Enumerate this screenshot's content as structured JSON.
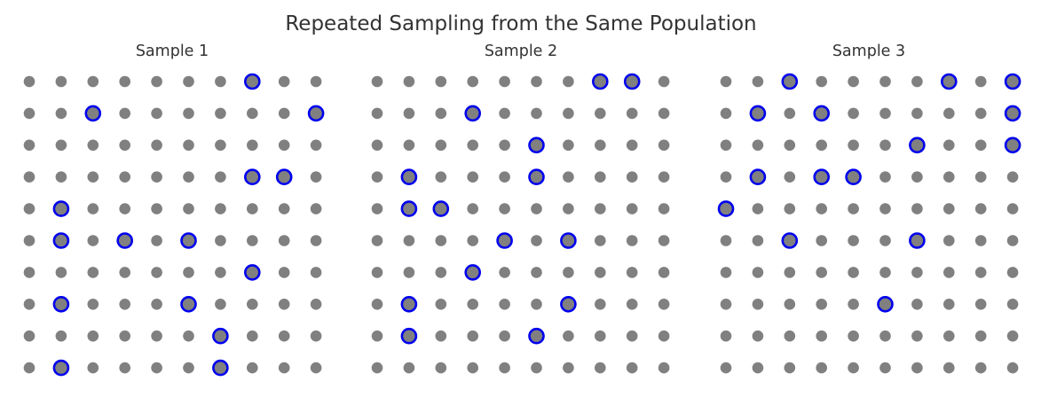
{
  "chart_data": {
    "type": "scatter",
    "title": "Repeated Sampling from the Same Population",
    "grid_rows": 10,
    "grid_cols": 10,
    "colors": {
      "population_dot": "#808080",
      "sample_ring": "#0000ee",
      "text": "#333333"
    },
    "panels": [
      {
        "title": "Sample 1",
        "selected": [
          [
            0,
            7
          ],
          [
            1,
            2
          ],
          [
            1,
            9
          ],
          [
            3,
            7
          ],
          [
            3,
            8
          ],
          [
            4,
            1
          ],
          [
            5,
            1
          ],
          [
            5,
            3
          ],
          [
            5,
            5
          ],
          [
            6,
            7
          ],
          [
            7,
            1
          ],
          [
            7,
            5
          ],
          [
            8,
            6
          ],
          [
            9,
            1
          ],
          [
            9,
            6
          ]
        ]
      },
      {
        "title": "Sample 2",
        "selected": [
          [
            0,
            7
          ],
          [
            0,
            8
          ],
          [
            1,
            3
          ],
          [
            2,
            5
          ],
          [
            3,
            1
          ],
          [
            3,
            5
          ],
          [
            4,
            1
          ],
          [
            4,
            2
          ],
          [
            5,
            4
          ],
          [
            5,
            6
          ],
          [
            6,
            3
          ],
          [
            7,
            1
          ],
          [
            7,
            6
          ],
          [
            8,
            1
          ],
          [
            8,
            5
          ]
        ]
      },
      {
        "title": "Sample 3",
        "selected": [
          [
            0,
            2
          ],
          [
            0,
            7
          ],
          [
            0,
            9
          ],
          [
            1,
            1
          ],
          [
            1,
            3
          ],
          [
            1,
            9
          ],
          [
            2,
            6
          ],
          [
            2,
            9
          ],
          [
            3,
            1
          ],
          [
            3,
            3
          ],
          [
            3,
            4
          ],
          [
            4,
            0
          ],
          [
            5,
            2
          ],
          [
            5,
            6
          ],
          [
            7,
            5
          ]
        ]
      }
    ]
  }
}
